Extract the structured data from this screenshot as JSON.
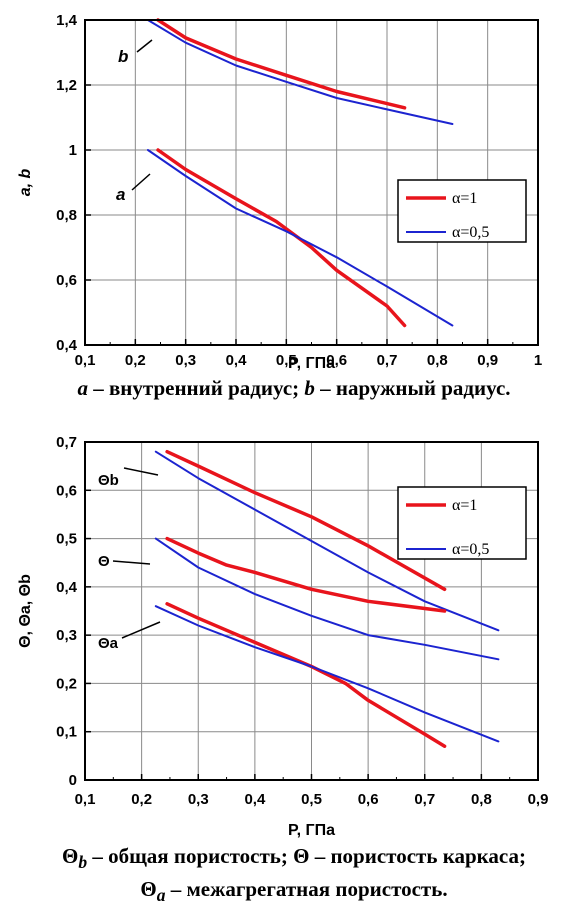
{
  "chart_data": [
    {
      "type": "line",
      "xlabel": "P, ГПа",
      "ylabel": "a, b",
      "xlim": [
        0.1,
        1.0
      ],
      "ylim": [
        0.4,
        1.4
      ],
      "xticks": [
        "0,1",
        "0,2",
        "0,3",
        "0,4",
        "0,5",
        "0,6",
        "0,7",
        "0,8",
        "0,9",
        "1"
      ],
      "yticks": [
        "0,4",
        "0,6",
        "0,8",
        "1",
        "1,2",
        "1,4"
      ],
      "grid": true,
      "legend_position": "right",
      "legend": [
        "α=1",
        "α=0,5"
      ],
      "annotations": [
        "b",
        "a"
      ],
      "series": [
        {
          "name": "α=1",
          "color": "#e8141c",
          "curve": "b",
          "x": [
            0.245,
            0.3,
            0.4,
            0.5,
            0.6,
            0.735
          ],
          "y": [
            1.4,
            1.345,
            1.28,
            1.23,
            1.18,
            1.13
          ]
        },
        {
          "name": "α=0,5",
          "color": "#1c24d0",
          "curve": "b",
          "x": [
            0.225,
            0.3,
            0.4,
            0.5,
            0.6,
            0.7,
            0.83
          ],
          "y": [
            1.4,
            1.33,
            1.26,
            1.21,
            1.16,
            1.125,
            1.08
          ]
        },
        {
          "name": "α=1",
          "color": "#e8141c",
          "curve": "a",
          "x": [
            0.245,
            0.3,
            0.4,
            0.48,
            0.55,
            0.6,
            0.7,
            0.735
          ],
          "y": [
            1.0,
            0.94,
            0.85,
            0.78,
            0.7,
            0.63,
            0.52,
            0.46
          ]
        },
        {
          "name": "α=0,5",
          "color": "#1c24d0",
          "curve": "a",
          "x": [
            0.225,
            0.3,
            0.4,
            0.5,
            0.6,
            0.7,
            0.83
          ],
          "y": [
            1.0,
            0.92,
            0.82,
            0.75,
            0.67,
            0.58,
            0.46
          ]
        }
      ]
    },
    {
      "type": "line",
      "xlabel": "P, ГПа",
      "ylabel": "Θ, Θa, Θb",
      "xlim": [
        0.1,
        0.9
      ],
      "ylim": [
        0,
        0.7
      ],
      "xticks": [
        "0,1",
        "0,2",
        "0,3",
        "0,4",
        "0,5",
        "0,6",
        "0,7",
        "0,8",
        "0,9"
      ],
      "yticks": [
        "0",
        "0,1",
        "0,2",
        "0,3",
        "0,4",
        "0,5",
        "0,6",
        "0,7"
      ],
      "grid": true,
      "legend_position": "top-right",
      "legend": [
        "α=1",
        "α=0,5"
      ],
      "annotations": [
        "Θb",
        "Θ",
        "Θa"
      ],
      "series": [
        {
          "name": "α=1",
          "color": "#e8141c",
          "curve": "Θb",
          "x": [
            0.245,
            0.3,
            0.4,
            0.5,
            0.6,
            0.735
          ],
          "y": [
            0.68,
            0.65,
            0.595,
            0.545,
            0.485,
            0.395
          ]
        },
        {
          "name": "α=0,5",
          "color": "#1c24d0",
          "curve": "Θb",
          "x": [
            0.225,
            0.3,
            0.4,
            0.5,
            0.6,
            0.7,
            0.83
          ],
          "y": [
            0.68,
            0.625,
            0.56,
            0.495,
            0.43,
            0.37,
            0.31
          ]
        },
        {
          "name": "α=1",
          "color": "#e8141c",
          "curve": "Θ",
          "x": [
            0.245,
            0.3,
            0.35,
            0.4,
            0.5,
            0.6,
            0.735
          ],
          "y": [
            0.5,
            0.47,
            0.445,
            0.43,
            0.395,
            0.37,
            0.35
          ]
        },
        {
          "name": "α=0,5",
          "color": "#1c24d0",
          "curve": "Θ",
          "x": [
            0.225,
            0.3,
            0.4,
            0.5,
            0.6,
            0.7,
            0.83
          ],
          "y": [
            0.5,
            0.44,
            0.385,
            0.34,
            0.3,
            0.28,
            0.25
          ]
        },
        {
          "name": "α=1",
          "color": "#e8141c",
          "curve": "Θa",
          "x": [
            0.245,
            0.3,
            0.4,
            0.5,
            0.56,
            0.6,
            0.7,
            0.735
          ],
          "y": [
            0.365,
            0.335,
            0.285,
            0.235,
            0.2,
            0.165,
            0.095,
            0.07
          ]
        },
        {
          "name": "α=0,5",
          "color": "#1c24d0",
          "curve": "Θa",
          "x": [
            0.225,
            0.3,
            0.4,
            0.5,
            0.6,
            0.7,
            0.83
          ],
          "y": [
            0.36,
            0.32,
            0.275,
            0.235,
            0.19,
            0.14,
            0.08
          ]
        }
      ]
    }
  ],
  "captions": {
    "top_a": "a",
    "top_a_text": " – внутренний радиус; ",
    "top_b": "b",
    "top_b_text": " – наружный радиус.",
    "bottom_line1_sym": "Θ",
    "bottom_line1_sub": "b",
    "bottom_line1_text": " – общая пористость; Θ – пористость каркаса;",
    "bottom_line2_sym": "Θ",
    "bottom_line2_sub": "a",
    "bottom_line2_text": " – межагрегатная пористость."
  }
}
